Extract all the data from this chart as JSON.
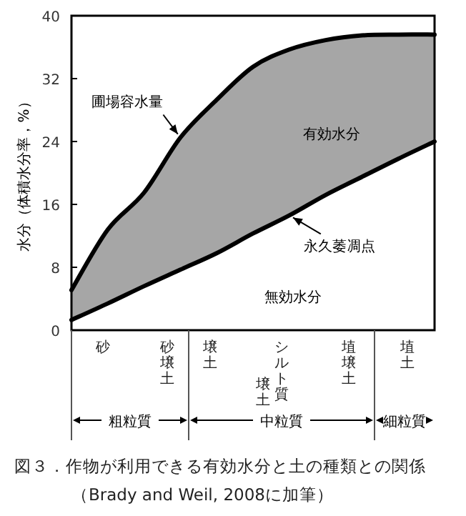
{
  "chart_data": {
    "type": "line",
    "ylabel": "水分（体積水分率，%）",
    "categories": [
      null,
      null,
      null,
      null,
      null,
      null,
      null,
      null,
      null,
      null,
      null
    ],
    "ylim": [
      0,
      40
    ],
    "yticks": [
      0,
      8,
      16,
      24,
      32,
      40
    ],
    "grid": false,
    "tick_labels": "y",
    "series": [
      {
        "name": "圃場容水量",
        "color": "#000000",
        "values": [
          5.1,
          12.8,
          17.5,
          24.5,
          29.3,
          33.5,
          35.7,
          36.9,
          37.5,
          37.6,
          37.6
        ],
        "lower": [
          1.3,
          3.4,
          5.6,
          7.7,
          9.8,
          12.3,
          14.6,
          17.2,
          19.5,
          21.8,
          24
        ],
        "upper": [
          5.1,
          12.8,
          17.5,
          24.5,
          29.3,
          33.5,
          35.7,
          36.9,
          37.5,
          37.6,
          37.6
        ]
      },
      {
        "name": "永久萎凋点",
        "color": "#000000",
        "values": [
          1.3,
          3.4,
          5.6,
          7.7,
          9.8,
          12.3,
          14.6,
          17.2,
          19.5,
          21.8,
          24
        ]
      }
    ],
    "annotations": [
      "有効水分",
      "無効水分",
      "砂",
      "砂壌土",
      "壌土",
      "シルト質壌土",
      "埴壌土",
      "埴土",
      "粗粒質",
      "中粒質",
      "細粒質",
      "図３．作物が利用できる有効水分と土の種類との関係（Brady and Weil, 2008に加筆）"
    ]
  }
}
